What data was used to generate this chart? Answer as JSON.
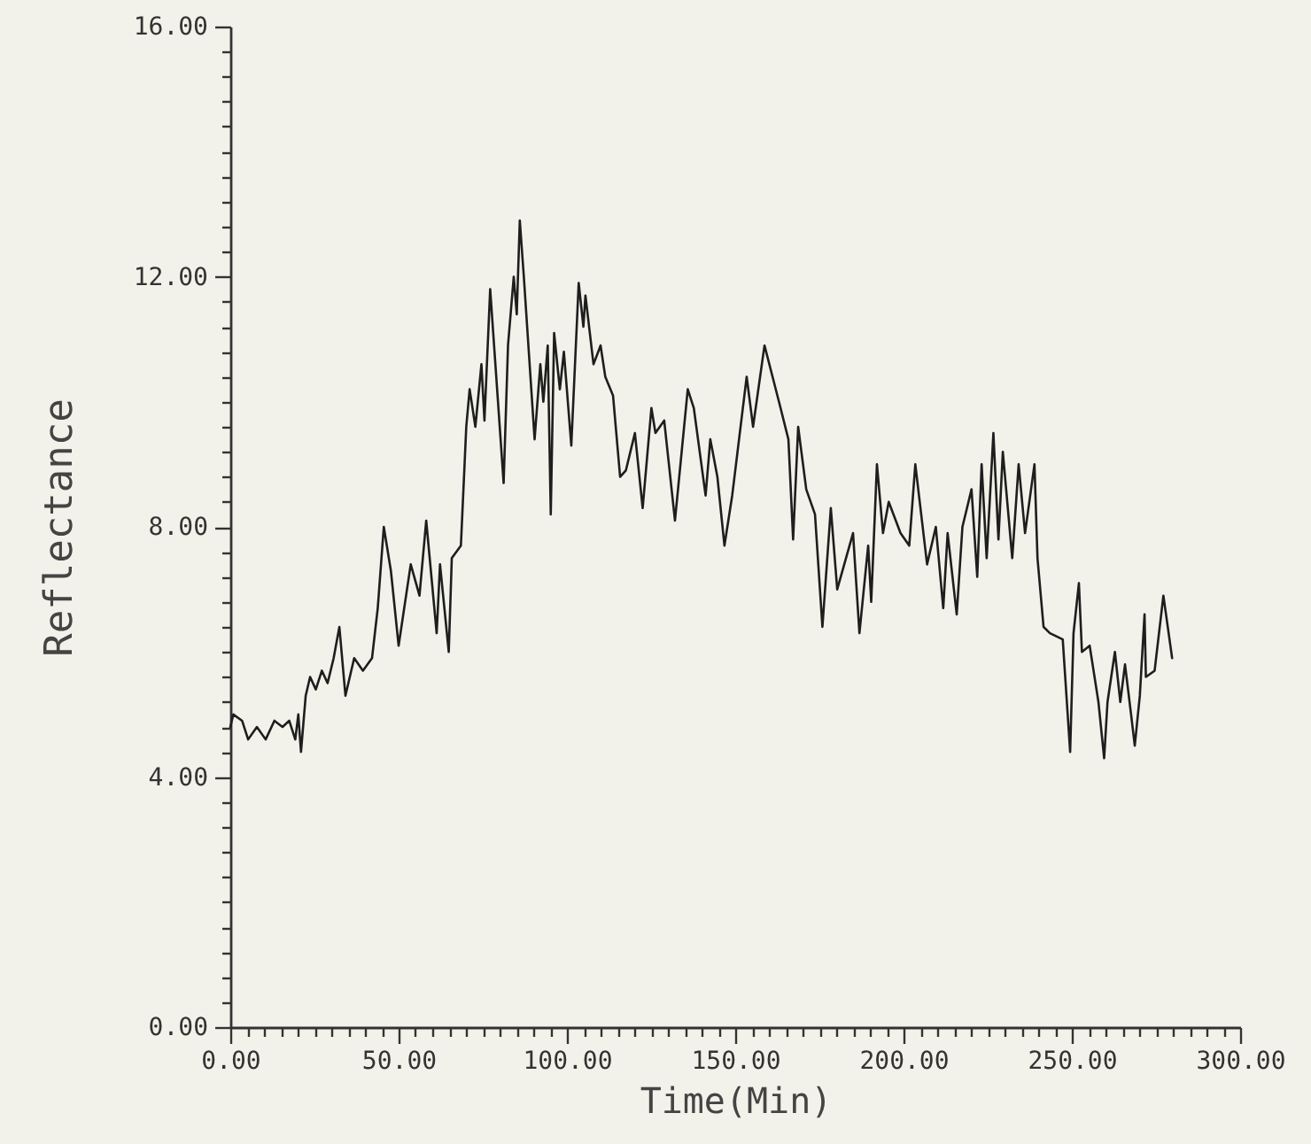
{
  "chart_data": {
    "type": "line",
    "xlabel": "Time(Min)",
    "ylabel": "Reflectance",
    "x": [
      0,
      0.9,
      3.5,
      5.3,
      7.9,
      10.5,
      13.1,
      15.5,
      17.5,
      19.3,
      20.2,
      21.0,
      22.4,
      23.7,
      25.4,
      27.2,
      28.9,
      30.7,
      32.4,
      34.2,
      36.8,
      39.4,
      42.1,
      43.8,
      45.6,
      47.7,
      50.0,
      53.6,
      56.2,
      58.2,
      61.3,
      62.3,
      64.9,
      65.8,
      68.5,
      70.1,
      71.1,
      72.8,
      74.6,
      75.5,
      77.2,
      81.2,
      82.5,
      84.2,
      85.1,
      86.0,
      87.2,
      90.4,
      92.1,
      93.0,
      94.3,
      95.2,
      96.2,
      97.9,
      99.1,
      101.3,
      103.5,
      104.9,
      105.5,
      107.9,
      110.0,
      111.4,
      113.7,
      115.8,
      117.5,
      120.2,
      122.5,
      125.1,
      126.3,
      128.9,
      132.1,
      135.9,
      137.7,
      141.2,
      142.6,
      144.7,
      146.8,
      149.1,
      153.4,
      155.3,
      158.7,
      163.0,
      165.8,
      167.2,
      168.7,
      171.1,
      173.7,
      175.9,
      178.4,
      180.3,
      185.0,
      186.9,
      189.5,
      190.4,
      192.1,
      193.9,
      195.6,
      199.1,
      201.7,
      203.5,
      207.0,
      209.6,
      211.8,
      213.1,
      215.8,
      217.5,
      220.2,
      221.9,
      223.2,
      224.7,
      226.7,
      228.2,
      229.5,
      232.3,
      234.2,
      236.1,
      238.9,
      239.8,
      241.6,
      243.5,
      247.3,
      249.5,
      250.5,
      252.1,
      253.0,
      255.3,
      257.9,
      259.6,
      260.6,
      262.8,
      264.4,
      265.8,
      267.6,
      268.7,
      270.2,
      271.6,
      272.0,
      274.6,
      277.2,
      279.8
    ],
    "series": [
      {
        "color": "#1e1e1e",
        "values": [
          4.8,
          5.0,
          4.9,
          4.6,
          4.8,
          4.6,
          4.9,
          4.8,
          4.9,
          4.6,
          5.0,
          4.4,
          5.3,
          5.6,
          5.4,
          5.7,
          5.5,
          5.9,
          6.4,
          5.3,
          5.9,
          5.7,
          5.9,
          6.7,
          8.0,
          7.3,
          6.1,
          7.4,
          6.9,
          8.1,
          6.3,
          7.4,
          6.0,
          7.5,
          7.7,
          9.6,
          10.2,
          9.6,
          10.6,
          9.7,
          11.8,
          8.7,
          10.9,
          12.0,
          11.4,
          12.9,
          12.0,
          9.4,
          10.6,
          10.0,
          10.9,
          8.2,
          11.1,
          10.2,
          10.8,
          9.3,
          11.9,
          11.2,
          11.7,
          10.6,
          10.9,
          10.4,
          10.1,
          8.8,
          8.9,
          9.5,
          8.3,
          9.9,
          9.5,
          9.7,
          8.1,
          10.2,
          9.9,
          8.5,
          9.4,
          8.8,
          7.7,
          8.5,
          10.4,
          9.6,
          10.9,
          10.0,
          9.4,
          7.8,
          9.6,
          8.6,
          8.2,
          6.4,
          8.3,
          7.0,
          7.9,
          6.3,
          7.7,
          6.8,
          9.0,
          7.9,
          8.4,
          7.9,
          7.7,
          9.0,
          7.4,
          8.0,
          6.7,
          7.9,
          6.6,
          8.0,
          8.6,
          7.2,
          9.0,
          7.5,
          9.5,
          7.8,
          9.2,
          7.5,
          9.0,
          7.9,
          9.0,
          7.5,
          6.4,
          6.3,
          6.2,
          4.4,
          6.3,
          7.1,
          6.0,
          6.1,
          5.2,
          4.3,
          5.2,
          6.0,
          5.2,
          5.8,
          5.0,
          4.5,
          5.3,
          6.6,
          5.6,
          5.7,
          6.9,
          5.9
        ]
      }
    ],
    "xlim": [
      0,
      300
    ],
    "ylim": [
      0,
      16
    ],
    "xticks": [
      {
        "value": 0,
        "label": "0.00"
      },
      {
        "value": 5,
        "label": null
      },
      {
        "value": 10,
        "label": null
      },
      {
        "value": 15,
        "label": null
      },
      {
        "value": 20,
        "label": null
      },
      {
        "value": 25,
        "label": null
      },
      {
        "value": 30,
        "label": null
      },
      {
        "value": 35,
        "label": null
      },
      {
        "value": 40,
        "label": null
      },
      {
        "value": 45,
        "label": null
      },
      {
        "value": 50,
        "label": "50.00"
      },
      {
        "value": 55,
        "label": null
      },
      {
        "value": 60,
        "label": null
      },
      {
        "value": 65,
        "label": null
      },
      {
        "value": 70,
        "label": null
      },
      {
        "value": 75,
        "label": null
      },
      {
        "value": 80,
        "label": null
      },
      {
        "value": 85,
        "label": null
      },
      {
        "value": 90,
        "label": null
      },
      {
        "value": 95,
        "label": null
      },
      {
        "value": 100,
        "label": "100.00"
      },
      {
        "value": 105,
        "label": null
      },
      {
        "value": 110,
        "label": null
      },
      {
        "value": 115,
        "label": null
      },
      {
        "value": 120,
        "label": null
      },
      {
        "value": 125,
        "label": null
      },
      {
        "value": 130,
        "label": null
      },
      {
        "value": 135,
        "label": null
      },
      {
        "value": 140,
        "label": null
      },
      {
        "value": 145,
        "label": null
      },
      {
        "value": 150,
        "label": "150.00"
      },
      {
        "value": 155,
        "label": null
      },
      {
        "value": 160,
        "label": null
      },
      {
        "value": 165,
        "label": null
      },
      {
        "value": 170,
        "label": null
      },
      {
        "value": 175,
        "label": null
      },
      {
        "value": 180,
        "label": null
      },
      {
        "value": 185,
        "label": null
      },
      {
        "value": 190,
        "label": null
      },
      {
        "value": 195,
        "label": null
      },
      {
        "value": 200,
        "label": "200.00"
      },
      {
        "value": 205,
        "label": null
      },
      {
        "value": 210,
        "label": null
      },
      {
        "value": 215,
        "label": null
      },
      {
        "value": 220,
        "label": null
      },
      {
        "value": 225,
        "label": null
      },
      {
        "value": 230,
        "label": null
      },
      {
        "value": 235,
        "label": null
      },
      {
        "value": 240,
        "label": null
      },
      {
        "value": 245,
        "label": null
      },
      {
        "value": 250,
        "label": "250.00"
      },
      {
        "value": 255,
        "label": null
      },
      {
        "value": 260,
        "label": null
      },
      {
        "value": 265,
        "label": null
      },
      {
        "value": 270,
        "label": null
      },
      {
        "value": 275,
        "label": null
      },
      {
        "value": 280,
        "label": null
      },
      {
        "value": 285,
        "label": null
      },
      {
        "value": 290,
        "label": null
      },
      {
        "value": 295,
        "label": null
      },
      {
        "value": 300,
        "label": "300.00"
      }
    ],
    "yticks": [
      {
        "value": 0,
        "label": "0.00"
      },
      {
        "value": 0.4,
        "label": null
      },
      {
        "value": 0.8,
        "label": null
      },
      {
        "value": 1.2,
        "label": null
      },
      {
        "value": 1.6,
        "label": null
      },
      {
        "value": 2,
        "label": null
      },
      {
        "value": 2.4,
        "label": null
      },
      {
        "value": 2.8,
        "label": null
      },
      {
        "value": 3.2,
        "label": null
      },
      {
        "value": 3.6,
        "label": null
      },
      {
        "value": 4,
        "label": "4.00"
      },
      {
        "value": 4.4,
        "label": null
      },
      {
        "value": 4.8,
        "label": null
      },
      {
        "value": 5.2,
        "label": null
      },
      {
        "value": 5.6,
        "label": null
      },
      {
        "value": 6,
        "label": null
      },
      {
        "value": 6.4,
        "label": null
      },
      {
        "value": 6.8,
        "label": null
      },
      {
        "value": 7.2,
        "label": null
      },
      {
        "value": 7.6,
        "label": null
      },
      {
        "value": 8,
        "label": "8.00"
      },
      {
        "value": 8.4,
        "label": null
      },
      {
        "value": 8.8,
        "label": null
      },
      {
        "value": 9.2,
        "label": null
      },
      {
        "value": 9.6,
        "label": null
      },
      {
        "value": 10,
        "label": null
      },
      {
        "value": 10.4,
        "label": null
      },
      {
        "value": 10.8,
        "label": null
      },
      {
        "value": 11.2,
        "label": null
      },
      {
        "value": 11.6,
        "label": null
      },
      {
        "value": 12,
        "label": "12.00"
      },
      {
        "value": 12.4,
        "label": null
      },
      {
        "value": 12.8,
        "label": null
      },
      {
        "value": 13.2,
        "label": null
      },
      {
        "value": 13.6,
        "label": null
      },
      {
        "value": 14,
        "label": null
      },
      {
        "value": 14.4,
        "label": null
      },
      {
        "value": 14.8,
        "label": null
      },
      {
        "value": 15.2,
        "label": null
      },
      {
        "value": 15.6,
        "label": null
      },
      {
        "value": 16,
        "label": "16.00"
      }
    ],
    "line_style": "solid"
  }
}
